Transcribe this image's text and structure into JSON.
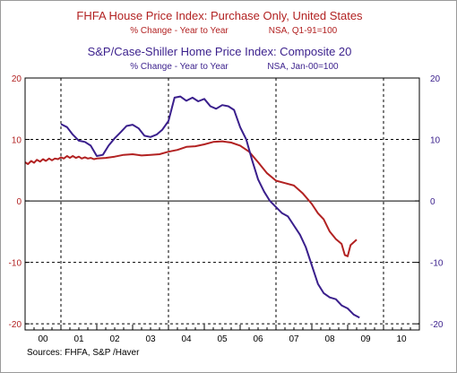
{
  "chart_data": {
    "type": "line",
    "titles": [
      {
        "title": "FHFA House Price Index: Purchase Only, United States",
        "subtitle": "% Change - Year to Year",
        "note": "NSA, Q1-91=100",
        "color": "#b22222"
      },
      {
        "title": "S&P/Case-Shiller Home Price Index: Composite 20",
        "subtitle": "% Change - Year to Year",
        "note": "NSA, Jan-00=100",
        "color": "#3a1f8c"
      }
    ],
    "ylim": [
      -21,
      20
    ],
    "yticks": [
      20,
      10,
      0,
      -10,
      -20
    ],
    "xlim": [
      2000.0,
      2011.0
    ],
    "x_tick_labels": [
      "00",
      "01",
      "02",
      "03",
      "04",
      "05",
      "06",
      "07",
      "08",
      "09",
      "10"
    ],
    "grid_years": [
      2001,
      2004,
      2007,
      2010
    ],
    "source": "Sources:   FHFA, S&P /Haver",
    "series": [
      {
        "color": "#b22222",
        "points": [
          [
            2000.0,
            6.3
          ],
          [
            2000.08,
            6.0
          ],
          [
            2000.17,
            6.5
          ],
          [
            2000.25,
            6.2
          ],
          [
            2000.33,
            6.7
          ],
          [
            2000.42,
            6.4
          ],
          [
            2000.5,
            6.8
          ],
          [
            2000.58,
            6.5
          ],
          [
            2000.67,
            6.9
          ],
          [
            2000.75,
            6.6
          ],
          [
            2000.83,
            6.9
          ],
          [
            2000.92,
            6.8
          ],
          [
            2001.0,
            7.1
          ],
          [
            2001.08,
            6.9
          ],
          [
            2001.17,
            7.3
          ],
          [
            2001.25,
            7.0
          ],
          [
            2001.33,
            7.3
          ],
          [
            2001.42,
            7.0
          ],
          [
            2001.5,
            7.2
          ],
          [
            2001.58,
            6.9
          ],
          [
            2001.67,
            7.1
          ],
          [
            2001.75,
            6.9
          ],
          [
            2001.83,
            7.0
          ],
          [
            2001.92,
            6.8
          ],
          [
            2002.0,
            6.9
          ],
          [
            2002.25,
            7.0
          ],
          [
            2002.5,
            7.2
          ],
          [
            2002.75,
            7.5
          ],
          [
            2003.0,
            7.6
          ],
          [
            2003.25,
            7.4
          ],
          [
            2003.5,
            7.5
          ],
          [
            2003.75,
            7.6
          ],
          [
            2004.0,
            8.0
          ],
          [
            2004.25,
            8.3
          ],
          [
            2004.5,
            8.8
          ],
          [
            2004.75,
            8.9
          ],
          [
            2005.0,
            9.2
          ],
          [
            2005.25,
            9.6
          ],
          [
            2005.5,
            9.7
          ],
          [
            2005.75,
            9.5
          ],
          [
            2006.0,
            9.0
          ],
          [
            2006.25,
            8.0
          ],
          [
            2006.5,
            6.3
          ],
          [
            2006.75,
            4.5
          ],
          [
            2007.0,
            3.3
          ],
          [
            2007.25,
            2.9
          ],
          [
            2007.5,
            2.5
          ],
          [
            2007.75,
            1.2
          ],
          [
            2008.0,
            -0.5
          ],
          [
            2008.17,
            -2.0
          ],
          [
            2008.33,
            -3.0
          ],
          [
            2008.5,
            -5.0
          ],
          [
            2008.67,
            -6.2
          ],
          [
            2008.83,
            -7.0
          ],
          [
            2008.92,
            -8.8
          ],
          [
            2009.0,
            -9.0
          ],
          [
            2009.08,
            -7.2
          ],
          [
            2009.25,
            -6.3
          ]
        ]
      },
      {
        "color": "#3a1f8c",
        "points": [
          [
            2001.0,
            12.5
          ],
          [
            2001.17,
            12.0
          ],
          [
            2001.33,
            10.8
          ],
          [
            2001.5,
            9.8
          ],
          [
            2001.67,
            9.6
          ],
          [
            2001.83,
            9.0
          ],
          [
            2002.0,
            7.3
          ],
          [
            2002.17,
            7.5
          ],
          [
            2002.33,
            9.0
          ],
          [
            2002.5,
            10.2
          ],
          [
            2002.67,
            11.2
          ],
          [
            2002.83,
            12.2
          ],
          [
            2003.0,
            12.4
          ],
          [
            2003.17,
            11.8
          ],
          [
            2003.33,
            10.6
          ],
          [
            2003.5,
            10.4
          ],
          [
            2003.67,
            10.8
          ],
          [
            2003.83,
            11.6
          ],
          [
            2004.0,
            13.0
          ],
          [
            2004.17,
            16.8
          ],
          [
            2004.33,
            17.0
          ],
          [
            2004.5,
            16.3
          ],
          [
            2004.67,
            16.8
          ],
          [
            2004.83,
            16.2
          ],
          [
            2005.0,
            16.6
          ],
          [
            2005.17,
            15.4
          ],
          [
            2005.33,
            15.0
          ],
          [
            2005.5,
            15.6
          ],
          [
            2005.67,
            15.4
          ],
          [
            2005.83,
            14.8
          ],
          [
            2006.0,
            12.0
          ],
          [
            2006.17,
            10.0
          ],
          [
            2006.33,
            6.7
          ],
          [
            2006.5,
            3.5
          ],
          [
            2006.67,
            1.5
          ],
          [
            2006.83,
            0.0
          ],
          [
            2007.0,
            -1.0
          ],
          [
            2007.17,
            -2.0
          ],
          [
            2007.33,
            -2.5
          ],
          [
            2007.5,
            -4.0
          ],
          [
            2007.67,
            -5.5
          ],
          [
            2007.83,
            -7.5
          ],
          [
            2008.0,
            -10.5
          ],
          [
            2008.17,
            -13.5
          ],
          [
            2008.33,
            -15.0
          ],
          [
            2008.5,
            -15.7
          ],
          [
            2008.67,
            -16.0
          ],
          [
            2008.83,
            -17.0
          ],
          [
            2009.0,
            -17.5
          ],
          [
            2009.17,
            -18.5
          ],
          [
            2009.33,
            -19.0
          ]
        ]
      }
    ]
  }
}
